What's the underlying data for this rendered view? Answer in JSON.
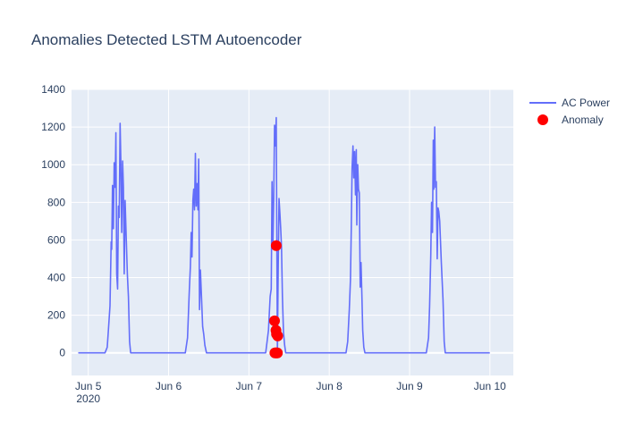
{
  "chart_data": {
    "type": "line",
    "title": "Anomalies Detected LSTM Autoencoder",
    "xlabel": "",
    "ylabel": "",
    "x_range": [
      "2020-06-04 19:00",
      "2020-06-10 07:00"
    ],
    "y_range": [
      -120,
      1400
    ],
    "y_ticks": [
      0,
      200,
      400,
      600,
      800,
      1000,
      1200,
      1400
    ],
    "x_ticks": [
      {
        "date": "2020-06-05 00:00",
        "label": "Jun 5",
        "sublabel": "2020"
      },
      {
        "date": "2020-06-06 00:00",
        "label": "Jun 6",
        "sublabel": ""
      },
      {
        "date": "2020-06-07 00:00",
        "label": "Jun 7",
        "sublabel": ""
      },
      {
        "date": "2020-06-08 00:00",
        "label": "Jun 8",
        "sublabel": ""
      },
      {
        "date": "2020-06-09 00:00",
        "label": "Jun 9",
        "sublabel": ""
      },
      {
        "date": "2020-06-10 00:00",
        "label": "Jun 10",
        "sublabel": ""
      }
    ],
    "grid": true,
    "legend_position": "top-right",
    "series": [
      {
        "name": "AC Power",
        "mode": "line",
        "color": "#636efa",
        "points": [
          [
            "2020-06-04 21:00",
            0
          ],
          [
            "2020-06-05 01:00",
            0
          ],
          [
            "2020-06-05 05:00",
            0
          ],
          [
            "2020-06-05 05:40",
            30
          ],
          [
            "2020-06-05 06:00",
            120
          ],
          [
            "2020-06-05 06:30",
            250
          ],
          [
            "2020-06-05 06:50",
            590
          ],
          [
            "2020-06-05 07:00",
            550
          ],
          [
            "2020-06-05 07:15",
            890
          ],
          [
            "2020-06-05 07:30",
            660
          ],
          [
            "2020-06-05 07:45",
            1010
          ],
          [
            "2020-06-05 08:00",
            880
          ],
          [
            "2020-06-05 08:15",
            1170
          ],
          [
            "2020-06-05 08:30",
            420
          ],
          [
            "2020-06-05 08:45",
            340
          ],
          [
            "2020-06-05 09:00",
            780
          ],
          [
            "2020-06-05 09:15",
            720
          ],
          [
            "2020-06-05 09:30",
            1220
          ],
          [
            "2020-06-05 09:45",
            1000
          ],
          [
            "2020-06-05 10:00",
            640
          ],
          [
            "2020-06-05 10:15",
            1020
          ],
          [
            "2020-06-05 10:30",
            880
          ],
          [
            "2020-06-05 10:45",
            420
          ],
          [
            "2020-06-05 11:00",
            810
          ],
          [
            "2020-06-05 11:20",
            620
          ],
          [
            "2020-06-05 11:40",
            420
          ],
          [
            "2020-06-05 12:00",
            300
          ],
          [
            "2020-06-05 12:20",
            60
          ],
          [
            "2020-06-05 12:40",
            0
          ],
          [
            "2020-06-05 18:00",
            0
          ],
          [
            "2020-06-06 05:00",
            0
          ],
          [
            "2020-06-06 05:40",
            80
          ],
          [
            "2020-06-06 06:10",
            320
          ],
          [
            "2020-06-06 06:30",
            460
          ],
          [
            "2020-06-06 06:45",
            640
          ],
          [
            "2020-06-06 07:00",
            510
          ],
          [
            "2020-06-06 07:15",
            810
          ],
          [
            "2020-06-06 07:30",
            870
          ],
          [
            "2020-06-06 07:45",
            760
          ],
          [
            "2020-06-06 08:00",
            1060
          ],
          [
            "2020-06-06 08:15",
            780
          ],
          [
            "2020-06-06 08:30",
            900
          ],
          [
            "2020-06-06 08:45",
            760
          ],
          [
            "2020-06-06 09:00",
            1030
          ],
          [
            "2020-06-06 09:15",
            230
          ],
          [
            "2020-06-06 09:30",
            440
          ],
          [
            "2020-06-06 09:50",
            300
          ],
          [
            "2020-06-06 10:10",
            140
          ],
          [
            "2020-06-06 10:30",
            100
          ],
          [
            "2020-06-06 10:50",
            40
          ],
          [
            "2020-06-06 11:20",
            0
          ],
          [
            "2020-06-06 18:00",
            0
          ],
          [
            "2020-06-07 05:00",
            0
          ],
          [
            "2020-06-07 05:50",
            120
          ],
          [
            "2020-06-07 06:20",
            300
          ],
          [
            "2020-06-07 06:40",
            340
          ],
          [
            "2020-06-07 06:55",
            910
          ],
          [
            "2020-06-07 07:10",
            570
          ],
          [
            "2020-06-07 07:25",
            830
          ],
          [
            "2020-06-07 07:40",
            1210
          ],
          [
            "2020-06-07 07:55",
            1100
          ],
          [
            "2020-06-07 08:10",
            1250
          ],
          [
            "2020-06-07 08:20",
            650
          ],
          [
            "2020-06-07 08:30",
            0
          ],
          [
            "2020-06-07 08:45",
            450
          ],
          [
            "2020-06-07 09:00",
            820
          ],
          [
            "2020-06-07 09:15",
            740
          ],
          [
            "2020-06-07 09:30",
            660
          ],
          [
            "2020-06-07 09:45",
            560
          ],
          [
            "2020-06-07 10:00",
            300
          ],
          [
            "2020-06-07 10:20",
            110
          ],
          [
            "2020-06-07 10:40",
            40
          ],
          [
            "2020-06-07 11:00",
            0
          ],
          [
            "2020-06-07 18:00",
            0
          ],
          [
            "2020-06-08 05:00",
            0
          ],
          [
            "2020-06-08 05:30",
            60
          ],
          [
            "2020-06-08 06:00",
            230
          ],
          [
            "2020-06-08 06:20",
            390
          ],
          [
            "2020-06-08 06:35",
            660
          ],
          [
            "2020-06-08 06:50",
            980
          ],
          [
            "2020-06-08 07:05",
            1100
          ],
          [
            "2020-06-08 07:20",
            930
          ],
          [
            "2020-06-08 07:35",
            1070
          ],
          [
            "2020-06-08 07:50",
            840
          ],
          [
            "2020-06-08 08:05",
            1080
          ],
          [
            "2020-06-08 08:15",
            680
          ],
          [
            "2020-06-08 08:30",
            1000
          ],
          [
            "2020-06-08 08:45",
            870
          ],
          [
            "2020-06-08 09:00",
            850
          ],
          [
            "2020-06-08 09:15",
            350
          ],
          [
            "2020-06-08 09:30",
            480
          ],
          [
            "2020-06-08 09:45",
            300
          ],
          [
            "2020-06-08 10:00",
            120
          ],
          [
            "2020-06-08 10:20",
            30
          ],
          [
            "2020-06-08 10:40",
            0
          ],
          [
            "2020-06-08 18:00",
            0
          ],
          [
            "2020-06-09 05:00",
            0
          ],
          [
            "2020-06-09 05:40",
            80
          ],
          [
            "2020-06-09 06:00",
            250
          ],
          [
            "2020-06-09 06:20",
            520
          ],
          [
            "2020-06-09 06:35",
            800
          ],
          [
            "2020-06-09 06:50",
            640
          ],
          [
            "2020-06-09 07:05",
            1130
          ],
          [
            "2020-06-09 07:15",
            870
          ],
          [
            "2020-06-09 07:30",
            1200
          ],
          [
            "2020-06-09 07:45",
            880
          ],
          [
            "2020-06-09 08:00",
            910
          ],
          [
            "2020-06-09 08:15",
            500
          ],
          [
            "2020-06-09 08:30",
            770
          ],
          [
            "2020-06-09 08:45",
            750
          ],
          [
            "2020-06-09 09:00",
            700
          ],
          [
            "2020-06-09 09:30",
            480
          ],
          [
            "2020-06-09 10:00",
            280
          ],
          [
            "2020-06-09 10:20",
            60
          ],
          [
            "2020-06-09 10:40",
            0
          ],
          [
            "2020-06-09 12:00",
            0
          ],
          [
            "2020-06-09 23:59",
            0
          ]
        ]
      },
      {
        "name": "Anomaly",
        "mode": "markers",
        "color": "#ff0000",
        "points": [
          [
            "2020-06-07 07:40",
            170
          ],
          [
            "2020-06-07 07:45",
            0
          ],
          [
            "2020-06-07 08:00",
            0
          ],
          [
            "2020-06-07 08:05",
            120
          ],
          [
            "2020-06-07 08:10",
            570
          ],
          [
            "2020-06-07 08:15",
            100
          ],
          [
            "2020-06-07 08:20",
            0
          ],
          [
            "2020-06-07 08:30",
            0
          ],
          [
            "2020-06-07 08:35",
            90
          ]
        ]
      }
    ]
  }
}
